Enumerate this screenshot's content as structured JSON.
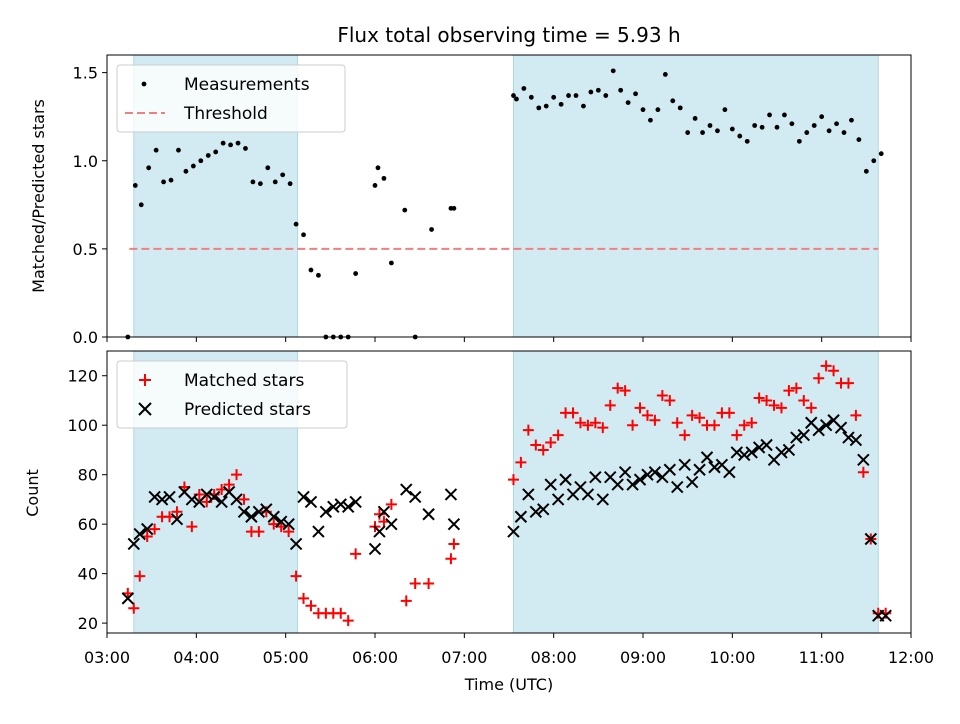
{
  "title": "Flux total observing time = 5.93 h",
  "colors": {
    "shade": "#add8e6",
    "measurement": "#000000",
    "threshold": "#f08080",
    "matched": "#ff0000",
    "predicted": "#000000"
  },
  "chart_data": [
    {
      "type": "scatter",
      "ylabel": "Matched/Predicted stars",
      "ylim": [
        0,
        1.6
      ],
      "yticks": [
        0.0,
        0.5,
        1.0,
        1.5
      ],
      "ytick_labels": [
        "0.0",
        "0.5",
        "1.0",
        "1.5"
      ],
      "xlim": [
        "03:00",
        "12:00"
      ],
      "legend_position": "upper-left",
      "shaded_intervals": [
        [
          "03:18",
          "05:08"
        ],
        [
          "07:33",
          "11:38"
        ]
      ],
      "threshold": {
        "name": "Threshold",
        "value": 0.5,
        "x_range": [
          "03:15",
          "11:38"
        ]
      },
      "series": [
        {
          "name": "Measurements",
          "x": [
            "03:14",
            "03:19",
            "03:23",
            "03:28",
            "03:33",
            "03:38",
            "03:43",
            "03:48",
            "03:53",
            "03:58",
            "04:03",
            "04:08",
            "04:13",
            "04:18",
            "04:23",
            "04:28",
            "04:33",
            "04:38",
            "04:43",
            "04:48",
            "04:53",
            "04:58",
            "05:03",
            "05:07",
            "05:12",
            "05:17",
            "05:22",
            "05:27",
            "05:32",
            "05:37",
            "05:42",
            "05:47",
            "06:00",
            "06:02",
            "06:06",
            "06:11",
            "06:20",
            "06:27",
            "06:38",
            "06:51",
            "06:53",
            "07:33",
            "07:35",
            "07:40",
            "07:45",
            "07:50",
            "07:55",
            "08:00",
            "08:05",
            "08:10",
            "08:15",
            "08:20",
            "08:25",
            "08:30",
            "08:35",
            "08:40",
            "08:45",
            "08:50",
            "08:55",
            "09:00",
            "09:05",
            "09:10",
            "09:15",
            "09:20",
            "09:25",
            "09:30",
            "09:35",
            "09:40",
            "09:45",
            "09:50",
            "09:55",
            "10:00",
            "10:05",
            "10:10",
            "10:15",
            "10:20",
            "10:25",
            "10:30",
            "10:35",
            "10:40",
            "10:45",
            "10:50",
            "10:55",
            "11:00",
            "11:05",
            "11:10",
            "11:15",
            "11:20",
            "11:25",
            "11:30",
            "11:35",
            "11:40"
          ],
          "values": [
            0.0,
            0.86,
            0.75,
            0.96,
            1.06,
            0.88,
            0.89,
            1.06,
            0.94,
            0.97,
            1.0,
            1.03,
            1.05,
            1.1,
            1.09,
            1.1,
            1.07,
            0.88,
            0.87,
            0.96,
            0.88,
            0.92,
            0.87,
            0.64,
            0.58,
            0.38,
            0.35,
            0.0,
            0.0,
            0.0,
            0.0,
            0.36,
            0.86,
            0.96,
            0.9,
            0.42,
            0.72,
            0.0,
            0.61,
            0.73,
            0.73,
            1.37,
            1.35,
            1.41,
            1.36,
            1.3,
            1.31,
            1.36,
            1.32,
            1.37,
            1.37,
            1.31,
            1.39,
            1.4,
            1.37,
            1.51,
            1.4,
            1.33,
            1.38,
            1.29,
            1.23,
            1.29,
            1.49,
            1.34,
            1.3,
            1.16,
            1.24,
            1.16,
            1.2,
            1.17,
            1.29,
            1.18,
            1.14,
            1.11,
            1.2,
            1.19,
            1.26,
            1.19,
            1.26,
            1.21,
            1.11,
            1.16,
            1.2,
            1.25,
            1.17,
            1.21,
            1.16,
            1.23,
            1.12,
            0.94,
            1.0,
            1.04
          ]
        }
      ]
    },
    {
      "type": "scatter",
      "xlabel": "Time (UTC)",
      "ylabel": "Count",
      "ylim": [
        16,
        130
      ],
      "yticks": [
        20,
        40,
        60,
        80,
        100,
        120
      ],
      "xlim": [
        "03:00",
        "12:00"
      ],
      "xticks": [
        "03:00",
        "04:00",
        "05:00",
        "06:00",
        "07:00",
        "08:00",
        "09:00",
        "10:00",
        "11:00",
        "12:00"
      ],
      "legend_position": "upper-left",
      "shaded_intervals": [
        [
          "03:18",
          "05:08"
        ],
        [
          "07:33",
          "11:38"
        ]
      ],
      "series": [
        {
          "name": "Matched stars",
          "marker": "+",
          "x": [
            "03:14",
            "03:18",
            "03:22",
            "03:27",
            "03:32",
            "03:37",
            "03:42",
            "03:47",
            "03:52",
            "03:57",
            "04:02",
            "04:07",
            "04:12",
            "04:17",
            "04:22",
            "04:27",
            "04:32",
            "04:37",
            "04:42",
            "04:47",
            "04:52",
            "04:57",
            "05:02",
            "05:07",
            "05:12",
            "05:17",
            "05:22",
            "05:27",
            "05:32",
            "05:37",
            "05:42",
            "05:47",
            "06:00",
            "06:03",
            "06:06",
            "06:11",
            "06:21",
            "06:27",
            "06:36",
            "06:51",
            "06:53",
            "07:33",
            "07:38",
            "07:43",
            "07:48",
            "07:53",
            "07:58",
            "08:03",
            "08:08",
            "08:13",
            "08:18",
            "08:23",
            "08:28",
            "08:33",
            "08:38",
            "08:43",
            "08:48",
            "08:53",
            "08:58",
            "09:03",
            "09:08",
            "09:13",
            "09:18",
            "09:23",
            "09:28",
            "09:33",
            "09:38",
            "09:43",
            "09:48",
            "09:53",
            "09:58",
            "10:03",
            "10:08",
            "10:13",
            "10:18",
            "10:23",
            "10:28",
            "10:33",
            "10:38",
            "10:43",
            "10:48",
            "10:53",
            "10:58",
            "11:03",
            "11:08",
            "11:13",
            "11:18",
            "11:23",
            "11:28",
            "11:33",
            "11:38",
            "11:43"
          ],
          "values": [
            32,
            26,
            39,
            55,
            58,
            63,
            63,
            65,
            75,
            59,
            72,
            69,
            72,
            74,
            76,
            80,
            70,
            57,
            57,
            65,
            60,
            59,
            57,
            39,
            30,
            27,
            24,
            24,
            24,
            24,
            21,
            48,
            59,
            64,
            61,
            68,
            29,
            36,
            36,
            46,
            52,
            78,
            85,
            98,
            92,
            90,
            93,
            96,
            105,
            105,
            101,
            100,
            101,
            99,
            108,
            115,
            114,
            100,
            107,
            104,
            102,
            112,
            110,
            101,
            96,
            104,
            103,
            100,
            100,
            105,
            105,
            96,
            100,
            101,
            111,
            110,
            108,
            107,
            114,
            115,
            110,
            107,
            119,
            124,
            122,
            117,
            117,
            104,
            81,
            54,
            24,
            24
          ]
        },
        {
          "name": "Predicted stars",
          "marker": "x",
          "x": [
            "03:14",
            "03:18",
            "03:22",
            "03:27",
            "03:32",
            "03:37",
            "03:42",
            "03:47",
            "03:52",
            "03:57",
            "04:02",
            "04:07",
            "04:12",
            "04:17",
            "04:22",
            "04:27",
            "04:32",
            "04:37",
            "04:42",
            "04:47",
            "04:52",
            "04:57",
            "05:02",
            "05:07",
            "05:12",
            "05:17",
            "05:22",
            "05:27",
            "05:32",
            "05:37",
            "05:42",
            "05:47",
            "06:00",
            "06:03",
            "06:06",
            "06:11",
            "06:21",
            "06:27",
            "06:36",
            "06:51",
            "06:53",
            "07:33",
            "07:38",
            "07:43",
            "07:48",
            "07:53",
            "07:58",
            "08:03",
            "08:08",
            "08:13",
            "08:18",
            "08:23",
            "08:28",
            "08:33",
            "08:38",
            "08:43",
            "08:48",
            "08:53",
            "08:58",
            "09:03",
            "09:08",
            "09:13",
            "09:18",
            "09:23",
            "09:28",
            "09:33",
            "09:38",
            "09:43",
            "09:48",
            "09:53",
            "09:58",
            "10:03",
            "10:08",
            "10:13",
            "10:18",
            "10:23",
            "10:28",
            "10:33",
            "10:38",
            "10:43",
            "10:48",
            "10:53",
            "10:58",
            "11:03",
            "11:08",
            "11:13",
            "11:18",
            "11:23",
            "11:28",
            "11:33",
            "11:38",
            "11:43"
          ],
          "values": [
            30,
            52,
            56,
            58,
            71,
            70,
            71,
            62,
            73,
            70,
            69,
            72,
            71,
            69,
            73,
            70,
            65,
            63,
            65,
            66,
            63,
            61,
            60,
            52,
            71,
            69,
            57,
            65,
            67,
            68,
            67,
            69,
            50,
            57,
            65,
            60,
            74,
            71,
            64,
            72,
            60,
            57,
            63,
            72,
            65,
            66,
            76,
            70,
            78,
            72,
            75,
            72,
            79,
            70,
            79,
            76,
            81,
            76,
            78,
            80,
            81,
            79,
            82,
            75,
            84,
            77,
            82,
            87,
            83,
            84,
            81,
            89,
            88,
            89,
            91,
            92,
            86,
            89,
            90,
            95,
            96,
            101,
            98,
            100,
            102,
            99,
            95,
            94,
            86,
            54,
            23,
            23
          ]
        }
      ]
    }
  ]
}
